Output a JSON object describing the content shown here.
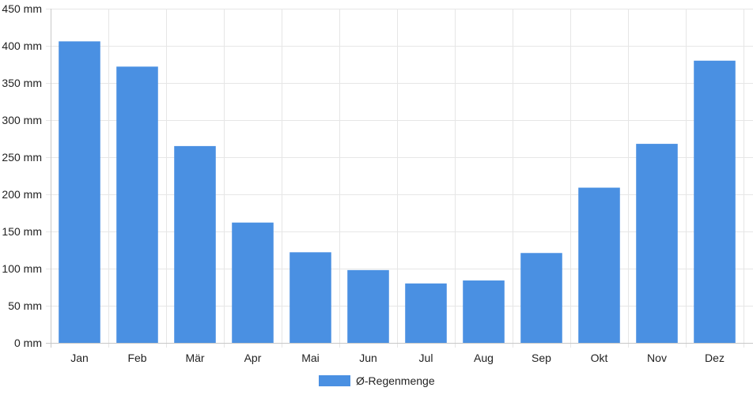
{
  "chart_data": {
    "type": "bar",
    "title": "",
    "xlabel": "",
    "ylabel": "",
    "categories": [
      "Jan",
      "Feb",
      "Mär",
      "Apr",
      "Mai",
      "Jun",
      "Jul",
      "Aug",
      "Sep",
      "Okt",
      "Nov",
      "Dez"
    ],
    "series": [
      {
        "name": "Ø-Regenmenge",
        "color": "#4a90e2",
        "values": [
          406,
          372,
          265,
          162,
          122,
          98,
          80,
          84,
          121,
          209,
          268,
          380
        ]
      }
    ],
    "ylim": [
      0,
      450
    ],
    "y_ticks": [
      "0 mm",
      "50 mm",
      "100 mm",
      "150 mm",
      "200 mm",
      "250 mm",
      "300 mm",
      "350 mm",
      "400 mm",
      "450 mm"
    ],
    "y_tick_values": [
      0,
      50,
      100,
      150,
      200,
      250,
      300,
      350,
      400,
      450
    ],
    "grid": true,
    "legend_position": "bottom-center"
  }
}
